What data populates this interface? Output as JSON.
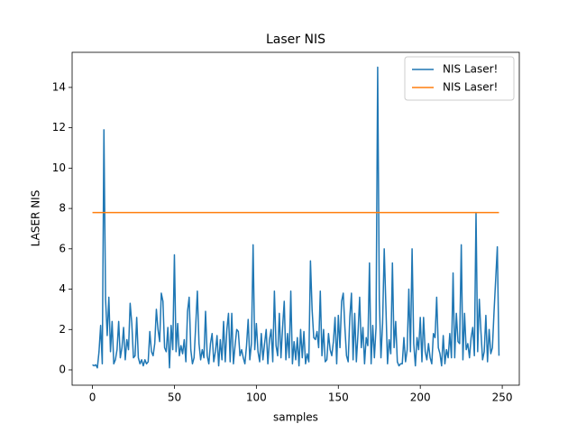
{
  "chart_data": {
    "type": "line",
    "title": "Laser NIS",
    "x_label": "samples",
    "y_label": "LASER NIS",
    "x": [
      0,
      1,
      2,
      3,
      4,
      5,
      6,
      7,
      8,
      9,
      10,
      11,
      12,
      13,
      14,
      15,
      16,
      17,
      18,
      19,
      20,
      21,
      22,
      23,
      24,
      25,
      26,
      27,
      28,
      29,
      30,
      31,
      32,
      33,
      34,
      35,
      36,
      37,
      38,
      39,
      40,
      41,
      42,
      43,
      44,
      45,
      46,
      47,
      48,
      49,
      50,
      51,
      52,
      53,
      54,
      55,
      56,
      57,
      58,
      59,
      60,
      61,
      62,
      63,
      64,
      65,
      66,
      67,
      68,
      69,
      70,
      71,
      72,
      73,
      74,
      75,
      76,
      77,
      78,
      79,
      80,
      81,
      82,
      83,
      84,
      85,
      86,
      87,
      88,
      89,
      90,
      91,
      92,
      93,
      94,
      95,
      96,
      97,
      98,
      99,
      100,
      101,
      102,
      103,
      104,
      105,
      106,
      107,
      108,
      109,
      110,
      111,
      112,
      113,
      114,
      115,
      116,
      117,
      118,
      119,
      120,
      121,
      122,
      123,
      124,
      125,
      126,
      127,
      128,
      129,
      130,
      131,
      132,
      133,
      134,
      135,
      136,
      137,
      138,
      139,
      140,
      141,
      142,
      143,
      144,
      145,
      146,
      147,
      148,
      149,
      150,
      151,
      152,
      153,
      154,
      155,
      156,
      157,
      158,
      159,
      160,
      161,
      162,
      163,
      164,
      165,
      166,
      167,
      168,
      169,
      170,
      171,
      172,
      173,
      174,
      175,
      176,
      177,
      178,
      179,
      180,
      181,
      182,
      183,
      184,
      185,
      186,
      187,
      188,
      189,
      190,
      191,
      192,
      193,
      194,
      195,
      196,
      197,
      198,
      199,
      200,
      201,
      202,
      203,
      204,
      205,
      206,
      207,
      208,
      209,
      210,
      211,
      212,
      213,
      214,
      215,
      216,
      217,
      218,
      219,
      220,
      221,
      222,
      223,
      224,
      225,
      226,
      227,
      228,
      229,
      230,
      231,
      232,
      233,
      234,
      235,
      236,
      237,
      238,
      239,
      240,
      241,
      242,
      243,
      244,
      245,
      246,
      247,
      248
    ],
    "series": [
      {
        "name": "NIS Laser!",
        "color": "#1f77b4",
        "values": [
          0.25,
          0.2,
          0.25,
          0.1,
          0.9,
          2.2,
          0.3,
          11.9,
          3.5,
          1.7,
          3.6,
          0.9,
          2.4,
          0.3,
          0.5,
          1.0,
          2.4,
          0.6,
          1.1,
          2.1,
          0.5,
          1.5,
          1.0,
          3.3,
          2.3,
          0.6,
          0.7,
          2.6,
          0.6,
          0.3,
          0.5,
          0.2,
          0.5,
          0.3,
          0.4,
          1.9,
          0.9,
          0.7,
          1.3,
          3.0,
          2.0,
          1.4,
          3.8,
          3.4,
          1.1,
          0.9,
          2.1,
          0.1,
          2.2,
          1.0,
          5.7,
          0.9,
          2.3,
          0.7,
          1.2,
          0.8,
          1.5,
          0.4,
          2.9,
          3.6,
          1.0,
          0.3,
          0.6,
          2.2,
          3.9,
          1.3,
          0.5,
          1.0,
          0.6,
          2.9,
          0.7,
          0.3,
          1.3,
          1.8,
          0.4,
          0.9,
          1.7,
          0.2,
          1.5,
          0.5,
          2.4,
          0.4,
          2.0,
          2.8,
          0.4,
          2.8,
          0.3,
          1.2,
          2.0,
          1.9,
          0.7,
          1.0,
          0.6,
          0.3,
          1.2,
          2.5,
          0.5,
          1.3,
          6.2,
          1.0,
          2.3,
          0.9,
          0.4,
          1.8,
          0.5,
          1.3,
          2.0,
          0.3,
          1.5,
          2.0,
          0.4,
          3.9,
          1.2,
          0.7,
          2.8,
          0.6,
          2.1,
          3.4,
          0.5,
          1.8,
          0.6,
          3.9,
          0.3,
          1.4,
          0.5,
          1.6,
          0.2,
          2.0,
          0.6,
          1.9,
          0.3,
          0.8,
          0.4,
          5.4,
          3.0,
          1.6,
          1.5,
          1.9,
          1.1,
          3.9,
          0.7,
          2.0,
          0.4,
          0.5,
          1.8,
          1.0,
          0.7,
          1.4,
          2.6,
          0.3,
          2.7,
          1.1,
          3.4,
          3.8,
          2.1,
          0.7,
          0.4,
          2.6,
          3.8,
          0.5,
          2.8,
          0.4,
          1.8,
          3.6,
          1.1,
          2.1,
          0.3,
          1.6,
          1.2,
          5.3,
          0.3,
          2.2,
          0.6,
          2.1,
          15.0,
          3.5,
          0.6,
          2.3,
          6.0,
          3.2,
          0.3,
          1.5,
          0.8,
          5.3,
          1.1,
          2.4,
          0.4,
          0.2,
          0.3,
          0.3,
          1.6,
          0.4,
          1.0,
          4.0,
          0.9,
          6.0,
          1.3,
          0.2,
          1.6,
          1.0,
          2.6,
          0.4,
          2.6,
          0.9,
          0.5,
          1.3,
          0.6,
          0.3,
          1.8,
          1.6,
          3.6,
          1.1,
          0.8,
          0.2,
          1.7,
          0.3,
          1.0,
          0.6,
          1.8,
          0.6,
          4.8,
          0.6,
          2.8,
          1.4,
          1.3,
          6.2,
          0.5,
          2.8,
          1.0,
          1.3,
          0.6,
          1.6,
          2.1,
          0.7,
          7.8,
          0.9,
          3.5,
          1.9,
          0.5,
          0.9,
          2.7,
          0.4,
          2.0,
          0.8,
          1.1,
          2.9,
          4.5,
          6.1,
          0.7
        ]
      },
      {
        "name": "NIS Laser!",
        "color": "#ff7f0e",
        "x": [
          0,
          248
        ],
        "values": [
          7.8,
          7.8
        ]
      }
    ],
    "xlim": [
      -12.4,
      260.4
    ],
    "ylim": [
      -0.76,
      15.74
    ],
    "xticks": [
      0,
      50,
      100,
      150,
      200,
      250
    ],
    "yticks": [
      0,
      2,
      4,
      6,
      8,
      10,
      12,
      14
    ],
    "legend": "upper right",
    "grid": false
  }
}
